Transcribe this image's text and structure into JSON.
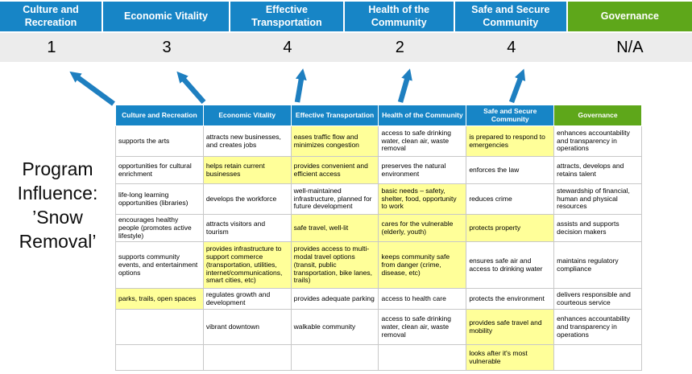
{
  "program": {
    "title": "Program Influence: ’Snow Removal’"
  },
  "goals": [
    {
      "label": "Culture and Recreation",
      "score": "1",
      "theme": "blue"
    },
    {
      "label": "Economic Vitality",
      "score": "3",
      "theme": "blue"
    },
    {
      "label": "Effective Transportation",
      "score": "4",
      "theme": "blue"
    },
    {
      "label": "Health of the Community",
      "score": "2",
      "theme": "blue"
    },
    {
      "label": "Safe and Secure Community",
      "score": "4",
      "theme": "blue"
    },
    {
      "label": "Governance",
      "score": "N/A",
      "theme": "green"
    }
  ],
  "matrix": {
    "headers": [
      {
        "label": "Culture and Recreation",
        "theme": "blue"
      },
      {
        "label": "Economic Vitality",
        "theme": "blue"
      },
      {
        "label": "Effective Transportation",
        "theme": "blue"
      },
      {
        "label": "Health of the Community",
        "theme": "blue"
      },
      {
        "label": "Safe and Secure Community",
        "theme": "blue"
      },
      {
        "label": "Governance",
        "theme": "green"
      }
    ],
    "rows": [
      [
        {
          "text": "supports the arts",
          "highlight": false
        },
        {
          "text": "attracts new businesses, and creates jobs",
          "highlight": false
        },
        {
          "text": "eases traffic flow and minimizes congestion",
          "highlight": true
        },
        {
          "text": "access to safe drinking water, clean air, waste removal",
          "highlight": false
        },
        {
          "text": "is prepared to respond to emergencies",
          "highlight": true
        },
        {
          "text": "enhances accountability and transparency in operations",
          "highlight": false
        }
      ],
      [
        {
          "text": "opportunities for cultural enrichment",
          "highlight": false
        },
        {
          "text": "helps retain current businesses",
          "highlight": true
        },
        {
          "text": "provides convenient and efficient access",
          "highlight": true
        },
        {
          "text": "preserves the natural environment",
          "highlight": false
        },
        {
          "text": "enforces the law",
          "highlight": false
        },
        {
          "text": "attracts, develops and retains talent",
          "highlight": false
        }
      ],
      [
        {
          "text": "life-long learning opportunities (libraries)",
          "highlight": false
        },
        {
          "text": "develops the workforce",
          "highlight": false
        },
        {
          "text": "well-maintained infrastructure, planned for future development",
          "highlight": false
        },
        {
          "text": "basic needs – safety, shelter, food, opportunity to work",
          "highlight": true
        },
        {
          "text": "reduces crime",
          "highlight": false
        },
        {
          "text": "stewardship of financial, human and physical resources",
          "highlight": false
        }
      ],
      [
        {
          "text": "encourages healthy people (promotes active lifestyle)",
          "highlight": false
        },
        {
          "text": "attracts visitors and tourism",
          "highlight": false
        },
        {
          "text": "safe travel, well-lit",
          "highlight": true
        },
        {
          "text": "cares for the vulnerable (elderly, youth)",
          "highlight": true
        },
        {
          "text": "protects property",
          "highlight": true
        },
        {
          "text": "assists and supports decision makers",
          "highlight": false
        }
      ],
      [
        {
          "text": "supports community events, and entertainment options",
          "highlight": false
        },
        {
          "text": "provides infrastructure to support commerce (transportation, utilities, internet/communications, smart cities, etc)",
          "highlight": true
        },
        {
          "text": "provides access to multi-modal travel options (transit, public transportation, bike lanes, trails)",
          "highlight": true
        },
        {
          "text": "keeps community safe from danger (crime, disease, etc)",
          "highlight": true
        },
        {
          "text": "ensures safe air and access to drinking water",
          "highlight": false
        },
        {
          "text": "maintains regulatory compliance",
          "highlight": false
        }
      ],
      [
        {
          "text": "parks, trails, open spaces",
          "highlight": true
        },
        {
          "text": "regulates growth and development",
          "highlight": false
        },
        {
          "text": "provides adequate parking",
          "highlight": false
        },
        {
          "text": "access to health care",
          "highlight": false
        },
        {
          "text": "protects the environment",
          "highlight": false
        },
        {
          "text": "delivers responsible and courteous service",
          "highlight": false
        }
      ],
      [
        {
          "text": "",
          "highlight": false
        },
        {
          "text": "vibrant downtown",
          "highlight": false
        },
        {
          "text": "walkable community",
          "highlight": false
        },
        {
          "text": "access to safe drinking water, clean air, waste removal",
          "highlight": false
        },
        {
          "text": "provides safe travel and mobility",
          "highlight": true
        },
        {
          "text": "enhances accountability and transparency in operations",
          "highlight": false
        }
      ],
      [
        {
          "text": "",
          "highlight": false
        },
        {
          "text": "",
          "highlight": false
        },
        {
          "text": "",
          "highlight": false
        },
        {
          "text": "",
          "highlight": false
        },
        {
          "text": "looks after it's most vulnerable",
          "highlight": true
        },
        {
          "text": "",
          "highlight": false
        }
      ]
    ]
  },
  "colors": {
    "header_blue": "#1785c6",
    "header_green": "#5ea71a",
    "highlight_yellow": "#ffff99",
    "arrow_blue": "#1e7fc0"
  }
}
